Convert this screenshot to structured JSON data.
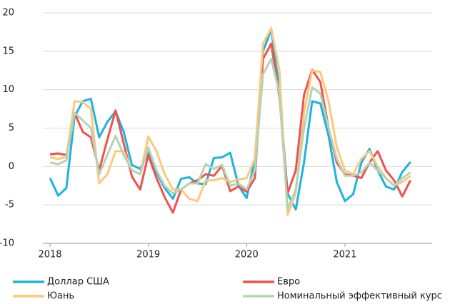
{
  "chart_data": {
    "type": "line",
    "categories": [
      "2018",
      null,
      null,
      null,
      null,
      null,
      null,
      null,
      null,
      null,
      null,
      null,
      "2019",
      null,
      null,
      null,
      null,
      null,
      null,
      null,
      null,
      null,
      null,
      null,
      "2020",
      null,
      null,
      null,
      null,
      null,
      null,
      null,
      null,
      null,
      null,
      null,
      "2021",
      null,
      null,
      null,
      null,
      null,
      null,
      null,
      null
    ],
    "ylim": [
      -10,
      20
    ],
    "yticks": [
      -10,
      -5,
      0,
      5,
      10,
      15,
      20
    ],
    "grid": true,
    "series": [
      {
        "name": "Доллар США",
        "color": "#1fb2e0",
        "values": [
          -1.5,
          -3.8,
          -2.8,
          6.5,
          8.5,
          8.8,
          3.8,
          5.8,
          7.2,
          4.5,
          0.2,
          -0.3,
          1.8,
          -0.8,
          -2.8,
          -4.2,
          -1.6,
          -1.4,
          -2.2,
          -2.3,
          1.1,
          1.2,
          1.8,
          -2.5,
          -4.1,
          1,
          15,
          17.8,
          10,
          -3.5,
          -5.6,
          0.5,
          8.5,
          8.2,
          4,
          -2,
          -4.5,
          -3.6,
          0.5,
          2.3,
          -0.5,
          -2.6,
          -3,
          -0.7,
          0.6
        ]
      },
      {
        "name": "Евро",
        "color": "#f0524f",
        "values": [
          1.6,
          1.7,
          1.5,
          7,
          4.5,
          3.8,
          -0.5,
          3.5,
          7.3,
          3,
          -1.3,
          -3,
          1.5,
          -1.5,
          -4,
          -6,
          -3,
          -2.2,
          -1.8,
          -1,
          -1.2,
          0.1,
          -3.2,
          -2.6,
          -3.3,
          -1.5,
          14,
          16,
          9,
          -3.5,
          -0.5,
          9.3,
          12.6,
          11,
          5,
          0.5,
          -1,
          -1.2,
          -1.5,
          0.5,
          2,
          -0.5,
          -1.8,
          -3.9,
          -1.8
        ]
      },
      {
        "name": "Юань",
        "color": "#fcc97c",
        "values": [
          1.2,
          1,
          1.2,
          8.5,
          8.4,
          7.5,
          -2.2,
          -1,
          2,
          2,
          -0.5,
          -1,
          3.9,
          2,
          -1,
          -3,
          -3,
          -4.2,
          -4.5,
          -1.8,
          -1.8,
          -1.5,
          -2,
          -1.7,
          -1.5,
          1,
          16,
          18,
          12.5,
          -6.3,
          -3.5,
          7,
          12.5,
          12.3,
          8.5,
          2.5,
          -0.5,
          -1,
          1,
          2,
          0,
          -1.5,
          -2.5,
          -2,
          -1.2
        ]
      },
      {
        "name": "Номинальный эффективный курс",
        "color": "#b5d3b4",
        "values": [
          0.5,
          0.3,
          0.8,
          7,
          6,
          5,
          -1,
          1.5,
          4,
          1.5,
          -0.5,
          -1,
          2.5,
          -0.5,
          -2.5,
          -3.5,
          -3,
          -2.2,
          -2.2,
          0.3,
          -0.3,
          0.2,
          -2.5,
          -2.2,
          -3,
          -0.5,
          12,
          14,
          9.5,
          -5.5,
          -3,
          5,
          10.3,
          9.5,
          5,
          1,
          -1.2,
          -1.2,
          -0.8,
          0.5,
          -0.5,
          -1.5,
          -2.5,
          -1.5,
          -0.8
        ]
      }
    ]
  }
}
